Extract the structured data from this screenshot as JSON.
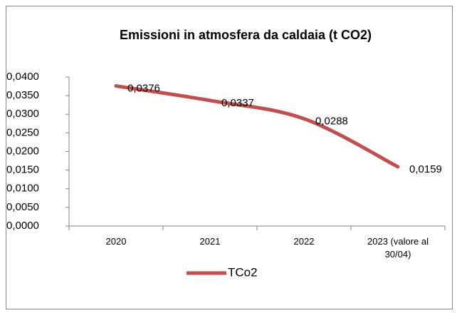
{
  "chart_data": {
    "type": "line",
    "title": "Emissioni in atmosfera da caldaia (t CO2)",
    "categories": [
      "2020",
      "2021",
      "2022",
      "2023 (valore al 30/04)"
    ],
    "series": [
      {
        "name": "TCo2",
        "color": "#c0504d",
        "values": [
          0.0376,
          0.0337,
          0.0288,
          0.0159
        ],
        "value_labels": [
          "0,0376",
          "0,0337",
          "0,0288",
          "0,0159"
        ]
      }
    ],
    "ylim": [
      0,
      0.04
    ],
    "yticks": [
      {
        "value": 0,
        "label": "0,0000"
      },
      {
        "value": 0.005,
        "label": "0,0050"
      },
      {
        "value": 0.01,
        "label": "0,0100"
      },
      {
        "value": 0.015,
        "label": "0,0150"
      },
      {
        "value": 0.02,
        "label": "0,0200"
      },
      {
        "value": 0.025,
        "label": "0,0250"
      },
      {
        "value": 0.03,
        "label": "0,0300"
      },
      {
        "value": 0.035,
        "label": "0,0350"
      },
      {
        "value": 0.04,
        "label": "0,0400"
      }
    ],
    "grid": false,
    "legend": "bottom"
  }
}
